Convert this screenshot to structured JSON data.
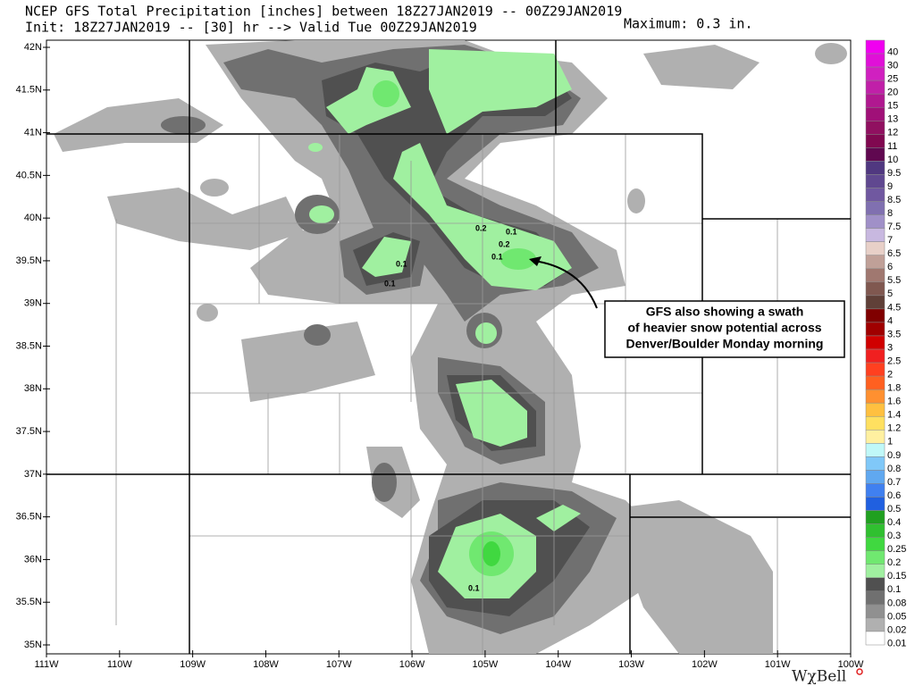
{
  "header": {
    "line1": "NCEP GFS Total Precipitation [inches] between 18Z27JAN2019 -- 00Z29JAN2019",
    "line2": "Init: 18Z27JAN2019 -- [30] hr --> Valid Tue 00Z29JAN2019",
    "maximum": "Maximum: 0.3 in."
  },
  "lat_labels": [
    "42N",
    "41.5N",
    "41N",
    "40.5N",
    "40N",
    "39.5N",
    "39N",
    "38.5N",
    "38N",
    "37.5N",
    "37N",
    "36.5N",
    "36N",
    "35.5N",
    "35N"
  ],
  "lon_labels": [
    "111W",
    "110W",
    "109W",
    "108W",
    "107W",
    "106W",
    "105W",
    "104W",
    "103W",
    "102W",
    "101W",
    "100W"
  ],
  "legend": [
    {
      "label": "40",
      "color": "#f000f0"
    },
    {
      "label": "30",
      "color": "#e010d8"
    },
    {
      "label": "25",
      "color": "#d020c0"
    },
    {
      "label": "20",
      "color": "#c020a8"
    },
    {
      "label": "15",
      "color": "#b01890"
    },
    {
      "label": "13",
      "color": "#a01078"
    },
    {
      "label": "12",
      "color": "#901060"
    },
    {
      "label": "11",
      "color": "#800850"
    },
    {
      "label": "10",
      "color": "#600850"
    },
    {
      "label": "9.5",
      "color": "#503880"
    },
    {
      "label": "9",
      "color": "#604890"
    },
    {
      "label": "8.5",
      "color": "#7058a0"
    },
    {
      "label": "8",
      "color": "#8070b0"
    },
    {
      "label": "7.5",
      "color": "#a090c8"
    },
    {
      "label": "7",
      "color": "#c8b8e0"
    },
    {
      "label": "6.5",
      "color": "#e8d0c8"
    },
    {
      "label": "6",
      "color": "#c0a098"
    },
    {
      "label": "5.5",
      "color": "#a07870"
    },
    {
      "label": "5",
      "color": "#805850"
    },
    {
      "label": "4.5",
      "color": "#604038"
    },
    {
      "label": "4",
      "color": "#800000"
    },
    {
      "label": "3.5",
      "color": "#a00000"
    },
    {
      "label": "3",
      "color": "#d00000"
    },
    {
      "label": "2.5",
      "color": "#f02020"
    },
    {
      "label": "2",
      "color": "#ff4020"
    },
    {
      "label": "1.8",
      "color": "#ff6020"
    },
    {
      "label": "1.6",
      "color": "#ff9030"
    },
    {
      "label": "1.4",
      "color": "#ffc040"
    },
    {
      "label": "1.2",
      "color": "#ffe060"
    },
    {
      "label": "1",
      "color": "#fff0a0"
    },
    {
      "label": "0.9",
      "color": "#c0f8f8"
    },
    {
      "label": "0.8",
      "color": "#80c8f8"
    },
    {
      "label": "0.7",
      "color": "#60a8f0"
    },
    {
      "label": "0.6",
      "color": "#4080f0"
    },
    {
      "label": "0.5",
      "color": "#2060e0"
    },
    {
      "label": "0.4",
      "color": "#20a020"
    },
    {
      "label": "0.3",
      "color": "#30c030"
    },
    {
      "label": "0.25",
      "color": "#40d840"
    },
    {
      "label": "0.2",
      "color": "#70e870"
    },
    {
      "label": "0.15",
      "color": "#a0f0a0"
    },
    {
      "label": "0.1",
      "color": "#505050"
    },
    {
      "label": "0.08",
      "color": "#707070"
    },
    {
      "label": "0.05",
      "color": "#909090"
    },
    {
      "label": "0.02",
      "color": "#b0b0b0"
    },
    {
      "label": "0.01",
      "color": "#ffffff"
    }
  ],
  "point_labels": [
    "0.2",
    "0.1",
    "0.2",
    "0.1",
    "0.1",
    "0.1",
    "0.1"
  ],
  "annotation": [
    "GFS also showing a swath",
    "of heavier snow potential across",
    "Denver/Boulder Monday morning"
  ],
  "brand": "WχBell"
}
